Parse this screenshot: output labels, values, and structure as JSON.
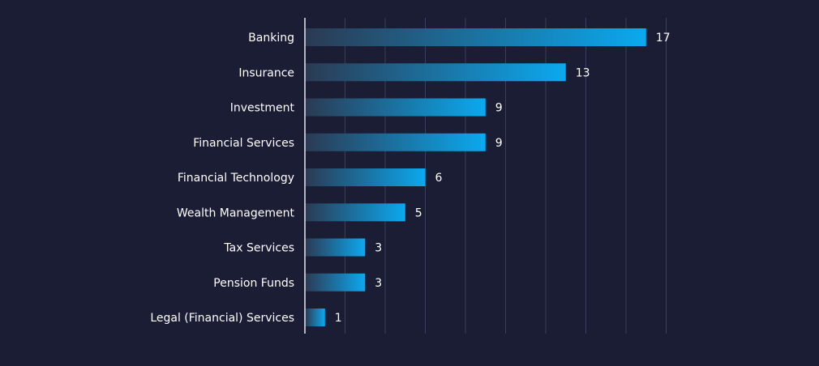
{
  "colors": {
    "background": "#1b1d35",
    "bar_start": "#2b3a52",
    "bar_end": "#0ba9ef",
    "grid": "#3a3d5c",
    "axis": "#e8e8f0",
    "text": "#ffffff"
  },
  "chart_data": {
    "type": "bar",
    "orientation": "horizontal",
    "title": "",
    "xlabel": "",
    "ylabel": "",
    "xlim": [
      0,
      18
    ],
    "grid": true,
    "x_gridlines": [
      0,
      2,
      4,
      6,
      8,
      10,
      12,
      14,
      16,
      18
    ],
    "categories": [
      "Banking",
      "Insurance",
      "Investment",
      "Financial Services",
      "Financial Technology",
      "Wealth Management",
      "Tax Services",
      "Pension Funds",
      "Legal (Financial) Services"
    ],
    "values": [
      17,
      13,
      9,
      9,
      6,
      5,
      3,
      3,
      1
    ],
    "value_labels": [
      "17",
      "13",
      "9",
      "9",
      "6",
      "5",
      "3",
      "3",
      "1"
    ]
  }
}
